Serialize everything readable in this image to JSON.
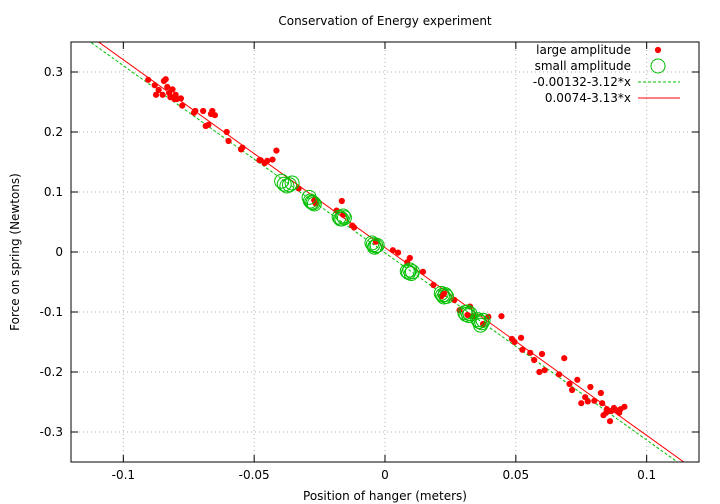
{
  "chart_data": {
    "type": "scatter",
    "title": "Conservation of Energy experiment",
    "xlabel": "Position of hanger (meters)",
    "ylabel": "Force on spring (Newtons)",
    "xlim": [
      -0.12,
      0.12
    ],
    "ylim": [
      -0.35,
      0.35
    ],
    "grid": true,
    "legend_position": "top-right",
    "x_ticks": [
      -0.1,
      -0.05,
      0,
      0.05,
      0.1
    ],
    "x_tick_labels": [
      "-0.1",
      "-0.05",
      "0",
      "0.05",
      "0.1"
    ],
    "y_ticks": [
      0.3,
      0.2,
      0.1,
      0,
      -0.1,
      -0.2,
      -0.3
    ],
    "y_tick_labels": [
      "0.3",
      "0.2",
      "0.1",
      "0",
      "-0.1",
      "-0.2",
      "-0.3"
    ],
    "colors": {
      "red": "#ff0000",
      "green": "#00c000",
      "grid": "#b0b0b0"
    },
    "series": [
      {
        "name": "large amplitude",
        "style": "points",
        "color": "#ff0000",
        "points": [
          [
            -0.0905,
            0.287
          ],
          [
            -0.088,
            0.278
          ],
          [
            -0.0875,
            0.262
          ],
          [
            -0.0865,
            0.27
          ],
          [
            -0.085,
            0.262
          ],
          [
            -0.0845,
            0.285
          ],
          [
            -0.0838,
            0.288
          ],
          [
            -0.0832,
            0.275
          ],
          [
            -0.0825,
            0.265
          ],
          [
            -0.082,
            0.258
          ],
          [
            -0.0812,
            0.271
          ],
          [
            -0.0805,
            0.255
          ],
          [
            -0.08,
            0.262
          ],
          [
            -0.0795,
            0.255
          ],
          [
            -0.078,
            0.256
          ],
          [
            -0.0775,
            0.244
          ],
          [
            -0.073,
            0.232
          ],
          [
            -0.0725,
            0.235
          ],
          [
            -0.0695,
            0.235
          ],
          [
            -0.0685,
            0.21
          ],
          [
            -0.0675,
            0.212
          ],
          [
            -0.0665,
            0.23
          ],
          [
            -0.066,
            0.235
          ],
          [
            -0.065,
            0.228
          ],
          [
            -0.0605,
            0.2
          ],
          [
            -0.0598,
            0.185
          ],
          [
            -0.055,
            0.171
          ],
          [
            -0.0545,
            0.174
          ],
          [
            -0.048,
            0.153
          ],
          [
            -0.0475,
            0.153
          ],
          [
            -0.046,
            0.148
          ],
          [
            -0.045,
            0.152
          ],
          [
            -0.043,
            0.154
          ],
          [
            -0.0415,
            0.169
          ],
          [
            -0.033,
            0.106
          ],
          [
            -0.027,
            0.086
          ],
          [
            -0.0265,
            0.081
          ],
          [
            -0.0185,
            0.069
          ],
          [
            -0.0165,
            0.085
          ],
          [
            -0.016,
            0.062
          ],
          [
            -0.0125,
            0.044
          ],
          [
            -0.0118,
            0.041
          ],
          [
            -0.0035,
            0.017
          ],
          [
            0.003,
            0.003
          ],
          [
            0.005,
            -0.001
          ],
          [
            0.0085,
            -0.017
          ],
          [
            0.0095,
            -0.01
          ],
          [
            0.0145,
            -0.033
          ],
          [
            0.0185,
            -0.055
          ],
          [
            0.0215,
            -0.074
          ],
          [
            0.0225,
            -0.07
          ],
          [
            0.0265,
            -0.08
          ],
          [
            0.0285,
            -0.097
          ],
          [
            0.0315,
            -0.105
          ],
          [
            0.0325,
            -0.091
          ],
          [
            0.0335,
            -0.107
          ],
          [
            0.0375,
            -0.12
          ],
          [
            0.0395,
            -0.108
          ],
          [
            0.0445,
            -0.107
          ],
          [
            0.0485,
            -0.145
          ],
          [
            0.0495,
            -0.15
          ],
          [
            0.052,
            -0.143
          ],
          [
            0.0525,
            -0.163
          ],
          [
            0.0555,
            -0.168
          ],
          [
            0.057,
            -0.18
          ],
          [
            0.059,
            -0.2
          ],
          [
            0.06,
            -0.17
          ],
          [
            0.061,
            -0.197
          ],
          [
            0.0665,
            -0.204
          ],
          [
            0.0685,
            -0.177
          ],
          [
            0.0705,
            -0.22
          ],
          [
            0.0715,
            -0.23
          ],
          [
            0.0735,
            -0.213
          ],
          [
            0.075,
            -0.252
          ],
          [
            0.0765,
            -0.242
          ],
          [
            0.0775,
            -0.249
          ],
          [
            0.0785,
            -0.225
          ],
          [
            0.08,
            -0.248
          ],
          [
            0.0825,
            -0.235
          ],
          [
            0.083,
            -0.252
          ],
          [
            0.0835,
            -0.272
          ],
          [
            0.0845,
            -0.268
          ],
          [
            0.0848,
            -0.262
          ],
          [
            0.086,
            -0.282
          ],
          [
            0.0865,
            -0.265
          ],
          [
            0.0875,
            -0.26
          ],
          [
            0.0885,
            -0.264
          ],
          [
            0.0895,
            -0.268
          ],
          [
            0.09,
            -0.262
          ],
          [
            0.0915,
            -0.258
          ]
        ]
      },
      {
        "name": "small amplitude",
        "style": "circles",
        "color": "#00c000",
        "points": [
          [
            -0.0395,
            0.118
          ],
          [
            -0.0385,
            0.113
          ],
          [
            -0.0375,
            0.11
          ],
          [
            -0.0365,
            0.112
          ],
          [
            -0.0355,
            0.115
          ],
          [
            -0.029,
            0.091
          ],
          [
            -0.0285,
            0.085
          ],
          [
            -0.028,
            0.083
          ],
          [
            -0.0275,
            0.082
          ],
          [
            -0.027,
            0.08
          ],
          [
            -0.0175,
            0.058
          ],
          [
            -0.017,
            0.055
          ],
          [
            -0.0165,
            0.055
          ],
          [
            -0.016,
            0.06
          ],
          [
            -0.0155,
            0.057
          ],
          [
            -0.005,
            0.015
          ],
          [
            -0.0045,
            0.012
          ],
          [
            -0.004,
            0.008
          ],
          [
            -0.0035,
            0.01
          ],
          [
            -0.003,
            0.011
          ],
          [
            0.0085,
            -0.032
          ],
          [
            0.009,
            -0.034
          ],
          [
            0.0095,
            -0.03
          ],
          [
            0.01,
            -0.036
          ],
          [
            0.0105,
            -0.033
          ],
          [
            0.0215,
            -0.069
          ],
          [
            0.022,
            -0.072
          ],
          [
            0.0225,
            -0.075
          ],
          [
            0.023,
            -0.071
          ],
          [
            0.0235,
            -0.074
          ],
          [
            0.0305,
            -0.101
          ],
          [
            0.031,
            -0.104
          ],
          [
            0.0315,
            -0.1
          ],
          [
            0.032,
            -0.106
          ],
          [
            0.0325,
            -0.103
          ],
          [
            0.0355,
            -0.113
          ],
          [
            0.036,
            -0.116
          ],
          [
            0.0365,
            -0.122
          ],
          [
            0.037,
            -0.118
          ],
          [
            0.0375,
            -0.114
          ]
        ]
      },
      {
        "name": "-0.00132-3.12*x",
        "style": "line",
        "dashed": true,
        "color": "#00c000",
        "intercept": -0.00132,
        "slope": -3.12
      },
      {
        "name": "0.0074-3.13*x",
        "style": "line",
        "dashed": false,
        "color": "#ff0000",
        "intercept": 0.0074,
        "slope": -3.13
      }
    ]
  }
}
